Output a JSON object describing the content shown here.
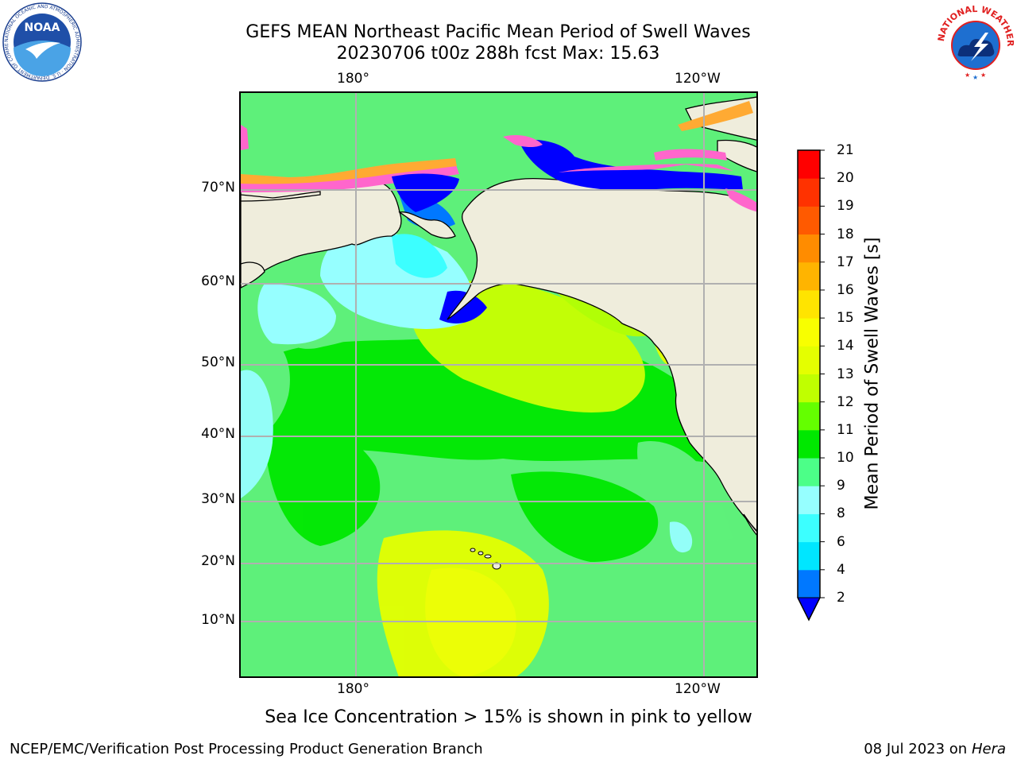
{
  "title_line1": "GEFS MEAN Northeast Pacific Mean Period of Swell Waves",
  "title_line2": "20230706 t00z 288h fcst   Max: 15.63",
  "lon_labels": [
    "180°",
    "120°W"
  ],
  "lat_labels": [
    "70°N",
    "60°N",
    "50°N",
    "40°N",
    "30°N",
    "20°N",
    "10°N"
  ],
  "colorbar": {
    "label": "Mean Period of Swell Waves [s]",
    "ticks": [
      "2",
      "4",
      "6",
      "8",
      "9",
      "10",
      "11",
      "12",
      "13",
      "14",
      "15",
      "16",
      "17",
      "18",
      "19",
      "20",
      "21"
    ],
    "colors": [
      "#0078ff",
      "#00e6ff",
      "#3cffff",
      "#96ffff",
      "#4cff88",
      "#00e800",
      "#64ff00",
      "#c0ff00",
      "#e4ff00",
      "#f8ff00",
      "#ffe400",
      "#ffb400",
      "#ff8c00",
      "#ff5a00",
      "#ff3200",
      "#ff0000"
    ],
    "under_color": "#0000ff"
  },
  "map_colors": {
    "land": "#efeddc",
    "ocean_base": "#5ef07a",
    "ice_pink": "#ff66cc",
    "ice_orange": "#ffaa33",
    "deep_blue": "#0000ff",
    "grid": "#b0b0b0"
  },
  "note": "Sea Ice Concentration > 15% is shown in pink to yellow",
  "footer_left": "NCEP/EMC/Verification Post Processing Product Generation Branch",
  "footer_right_date": "08 Jul 2023 on",
  "footer_right_host": "Hera",
  "logos": {
    "noaa": {
      "text": "NOAA",
      "ring_text": "NATIONAL OCEANIC AND ATMOSPHERIC ADMINISTRATION · U.S. DEPARTMENT OF COMMERCE"
    },
    "nws": {
      "ring_text": "NATIONAL WEATHER SERVICE"
    }
  }
}
